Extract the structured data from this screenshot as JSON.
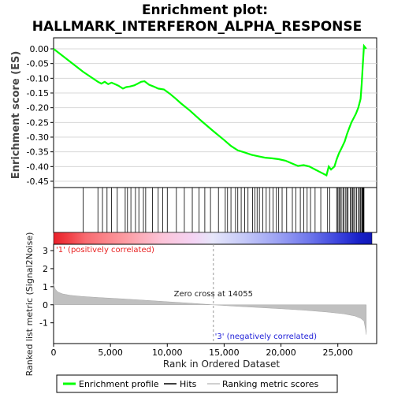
{
  "chart_data": [
    {
      "type": "line",
      "title_lines": [
        "Enrichment plot:",
        "HALLMARK_INTERFERON_ALPHA_RESPONSE"
      ],
      "ylabel": "Enrichment score (ES)",
      "ylim": [
        -0.45,
        0.0
      ],
      "yticks": [
        0.0,
        -0.05,
        -0.1,
        -0.15,
        -0.2,
        -0.25,
        -0.3,
        -0.35,
        -0.4,
        -0.45
      ],
      "ytick_labels": [
        "0.00",
        "-0.05",
        "-0.10",
        "-0.15",
        "-0.20",
        "-0.25",
        "-0.30",
        "-0.35",
        "-0.40",
        "-0.45"
      ],
      "xlim": [
        0,
        28000
      ],
      "grid": true,
      "color": "#00ff00",
      "series": [
        {
          "name": "Enrichment profile",
          "x": [
            0,
            2600,
            3900,
            4200,
            4500,
            4800,
            5100,
            5400,
            5700,
            6100,
            6400,
            6700,
            7100,
            7400,
            7700,
            8000,
            8400,
            8800,
            9200,
            9700,
            10200,
            10700,
            11200,
            12000,
            13000,
            14055,
            15000,
            15600,
            16200,
            16800,
            17400,
            18000,
            18600,
            19200,
            19800,
            20400,
            21000,
            21500,
            22000,
            22500,
            23000,
            23500,
            24000,
            24200,
            24400,
            24700,
            24900,
            25100,
            25300,
            25600,
            25800,
            26000,
            26200,
            26400,
            26600,
            26800,
            27000,
            27100,
            27200,
            27300,
            27500
          ],
          "y": [
            0.0,
            -0.078,
            -0.112,
            -0.118,
            -0.112,
            -0.12,
            -0.115,
            -0.12,
            -0.125,
            -0.135,
            -0.13,
            -0.128,
            -0.124,
            -0.118,
            -0.112,
            -0.11,
            -0.122,
            -0.128,
            -0.135,
            -0.138,
            -0.152,
            -0.168,
            -0.185,
            -0.21,
            -0.245,
            -0.28,
            -0.31,
            -0.33,
            -0.345,
            -0.352,
            -0.36,
            -0.365,
            -0.37,
            -0.372,
            -0.375,
            -0.38,
            -0.39,
            -0.398,
            -0.395,
            -0.4,
            -0.41,
            -0.42,
            -0.43,
            -0.4,
            -0.41,
            -0.4,
            -0.375,
            -0.355,
            -0.34,
            -0.315,
            -0.29,
            -0.27,
            -0.25,
            -0.235,
            -0.22,
            -0.2,
            -0.17,
            -0.12,
            -0.05,
            0.01,
            0.0
          ]
        }
      ]
    },
    {
      "type": "bar",
      "role": "hits",
      "xlim": [
        0,
        28000
      ],
      "hit_positions": [
        2600,
        3900,
        4300,
        4700,
        5100,
        5600,
        6300,
        6500,
        6800,
        7200,
        7500,
        7900,
        8100,
        8700,
        9200,
        9600,
        10000,
        10800,
        11500,
        12200,
        12800,
        13300,
        13800,
        14500,
        15100,
        15300,
        15600,
        16000,
        16200,
        16500,
        16800,
        17100,
        17500,
        17700,
        17900,
        18100,
        18400,
        18700,
        19000,
        19300,
        19600,
        19800,
        20100,
        20500,
        21000,
        21300,
        21700,
        22000,
        22300,
        22600,
        23000,
        23500,
        24100,
        24300,
        24900,
        25000,
        25100,
        25200,
        25300,
        25450,
        25550,
        25700,
        25800,
        25900,
        26100,
        26200,
        26300,
        26400,
        26500,
        26650,
        26800,
        26900,
        27000,
        27100,
        27150,
        27200,
        27250,
        27300
      ]
    },
    {
      "type": "area",
      "role": "ranking_metric",
      "ylabel": "Ranked list metric (Signal2Noise)",
      "xlabel": "Rank in Ordered Dataset",
      "ylim": [
        -1.8,
        3.0
      ],
      "yticks": [
        3,
        2,
        1,
        0,
        -1
      ],
      "ytick_labels": [
        "3",
        "2",
        "1",
        "0",
        "-1"
      ],
      "xlim": [
        0,
        28000
      ],
      "xticks": [
        0,
        5000,
        10000,
        15000,
        20000,
        25000
      ],
      "xtick_labels": [
        "0",
        "5,000",
        "10,000",
        "15,000",
        "20,000",
        "25,000"
      ],
      "x": [
        0,
        150,
        400,
        800,
        1500,
        2500,
        4000,
        6000,
        8000,
        10000,
        12000,
        14055,
        16000,
        18000,
        20000,
        22000,
        24000,
        25500,
        26500,
        27000,
        27300,
        27450,
        27500
      ],
      "values": [
        1.15,
        0.85,
        0.7,
        0.6,
        0.52,
        0.46,
        0.4,
        0.33,
        0.25,
        0.17,
        0.09,
        0.0,
        -0.08,
        -0.15,
        -0.22,
        -0.3,
        -0.4,
        -0.5,
        -0.62,
        -0.75,
        -0.9,
        -1.4,
        -1.65
      ],
      "zero_cross_label": "Zero cross at 14055",
      "zero_cross_x": 14055,
      "pos_label": "'1' (positively correlated)",
      "neg_label": "'3' (negatively correlated)",
      "fill_color": "#c0c0c0"
    }
  ],
  "legend": {
    "placement": "bottom",
    "items": [
      {
        "label": "Enrichment profile",
        "color": "#00ff00"
      },
      {
        "label": "Hits",
        "color": "#000000"
      },
      {
        "label": "Ranking metric scores",
        "color": "#c0c0c0"
      }
    ]
  }
}
